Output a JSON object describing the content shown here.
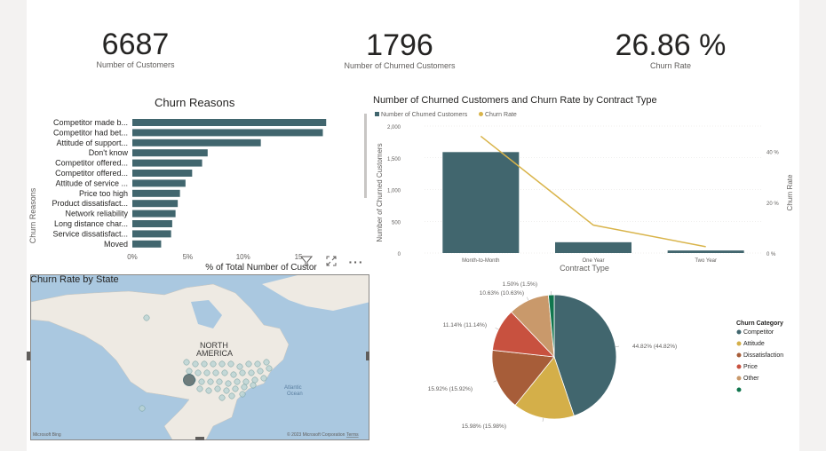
{
  "kpis": [
    {
      "value": "6687",
      "label": "Number of Customers"
    },
    {
      "value": "1796",
      "label": "Number of Churned Customers"
    },
    {
      "value": "26.86 %",
      "label": "Churn Rate"
    }
  ],
  "churn_reasons": {
    "title": "Churn Reasons",
    "ylabel": "Churn Reasons",
    "xlabel": "% of Total Number of Custor",
    "xticks": [
      "0%",
      "5%",
      "10%",
      "15"
    ]
  },
  "contract": {
    "title": "Number of Churned Customers and Churn Rate by Contract Type",
    "legend": [
      "Number of Churned Customers",
      "Churn Rate"
    ],
    "ylabel": "Number of Churned Customers",
    "y2label": "Churn Rate",
    "xlabel": "Contract Type",
    "yticks": [
      "2,000",
      "1,500",
      "1,000",
      "500",
      "0"
    ],
    "y2ticks": [
      "40 %",
      "20 %",
      "0 %"
    ]
  },
  "map": {
    "title": "Churn Rate by State",
    "continent_label": [
      "NORTH",
      "AMERICA"
    ],
    "ocean_label": [
      "Atlantic",
      "Ocean"
    ],
    "attribution": "© 2023 Microsoft Corporation",
    "terms": "Terms",
    "bing": "Microsoft Bing"
  },
  "pie": {
    "legend_title": "Churn Category",
    "legend": [
      "Competitor",
      "Attitude",
      "Dissatisfaction",
      "Price",
      "Other",
      ""
    ]
  },
  "toolbar": {
    "filter_icon": "filter-icon",
    "focus_icon": "focus-mode-icon",
    "more_icon": "more-options-icon"
  },
  "chart_data": [
    {
      "type": "bar",
      "title": "Churn Reasons",
      "categories": [
        "Competitor made b...",
        "Competitor had bet...",
        "Attitude of support...",
        "Don't know",
        "Competitor offered...",
        "Competitor offered...",
        "Attitude of service ...",
        "Price too high",
        "Product dissatisfact...",
        "Network reliability",
        "Long distance char...",
        "Service dissatisfact...",
        "Moved"
      ],
      "values": [
        17.5,
        17.2,
        11.6,
        6.8,
        6.3,
        5.4,
        4.8,
        4.3,
        4.1,
        3.9,
        3.6,
        3.5,
        2.6
      ],
      "xlabel": "% of Total Number of Custor",
      "ylabel": "Churn Reasons",
      "xlim": [
        0,
        17
      ],
      "orientation": "horizontal",
      "color": "#41666e"
    },
    {
      "type": "bar",
      "title": "Number of Churned Customers and Churn Rate by Contract Type",
      "categories": [
        "Month-to-Month",
        "One Year",
        "Two Year"
      ],
      "series": [
        {
          "name": "Number of Churned Customers",
          "values": [
            1590,
            170,
            40
          ],
          "color": "#41666e"
        },
        {
          "name": "Churn Rate",
          "values": [
            46,
            11,
            2.5
          ],
          "color": "#d9b44a",
          "type": "line",
          "axis": "secondary"
        }
      ],
      "xlabel": "Contract Type",
      "ylabel": "Number of Churned Customers",
      "y2label": "Churn Rate",
      "ylim": [
        0,
        2000
      ],
      "y2lim": [
        0,
        50
      ]
    },
    {
      "type": "pie",
      "categories": [
        "Competitor",
        "Attitude",
        "Dissatisfaction",
        "Price",
        "Other",
        ""
      ],
      "values": [
        44.82,
        15.98,
        15.92,
        11.14,
        10.63,
        1.5
      ],
      "labels": [
        "44.82% (44.82%)",
        "15.98% (15.98%)",
        "15.92% (15.92%)",
        "11.14% (11.14%)",
        "10.63% (10.63%)",
        "1.50% (1.5%)"
      ],
      "colors": [
        "#41666e",
        "#d4af49",
        "#a75d39",
        "#c8513f",
        "#c9996b",
        "#10754d"
      ],
      "legend_title": "Churn Category"
    }
  ]
}
